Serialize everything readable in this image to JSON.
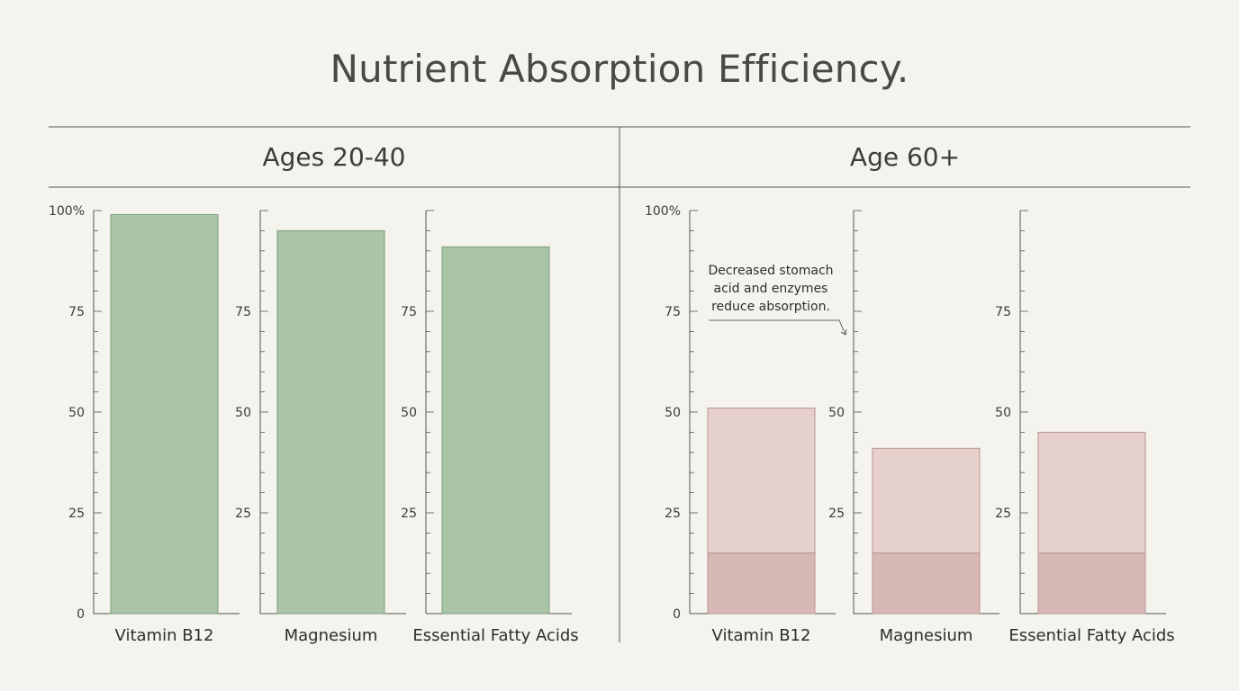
{
  "title": "Nutrient Absorption Efficiency.",
  "colors": {
    "young_bar": "#a9c4a6",
    "young_bar_stroke": "#7e9f7a",
    "old_bar": "#e5d0cc",
    "old_bar_base": "#d8b8b5",
    "old_bar_stroke": "#b99592",
    "axis": "#55554f"
  },
  "chart_data": [
    {
      "type": "bar",
      "title": "Ages 20-40",
      "categories": [
        "Vitamin B12",
        "Magnesium",
        "Essential Fatty Acids"
      ],
      "values": [
        99,
        95,
        91
      ],
      "ylim": [
        0,
        100
      ],
      "yticks": [
        0,
        25,
        50,
        75,
        100
      ],
      "ytick_labels_first_axis": [
        "0",
        "25",
        "50",
        "75",
        "100%"
      ],
      "ytick_labels_other_axes": [
        "25",
        "50",
        "75"
      ]
    },
    {
      "type": "bar",
      "title": "Age 60+",
      "categories": [
        "Vitamin B12",
        "Magnesium",
        "Essential Fatty Acids"
      ],
      "values": [
        51,
        41,
        45
      ],
      "base_segment_values": [
        15,
        15,
        15
      ],
      "ylim": [
        0,
        100
      ],
      "yticks": [
        0,
        25,
        50,
        75,
        100
      ],
      "ytick_labels_first_axis": [
        "0",
        "25",
        "50",
        "75",
        "100%"
      ],
      "ytick_labels_other_axes": [
        "25",
        "50"
      ],
      "ytick_labels_third_axis": [
        "25",
        "50",
        "75"
      ],
      "annotation": {
        "lines": [
          "Decreased stomach",
          "acid and enzymes",
          "reduce absorption."
        ]
      }
    }
  ]
}
